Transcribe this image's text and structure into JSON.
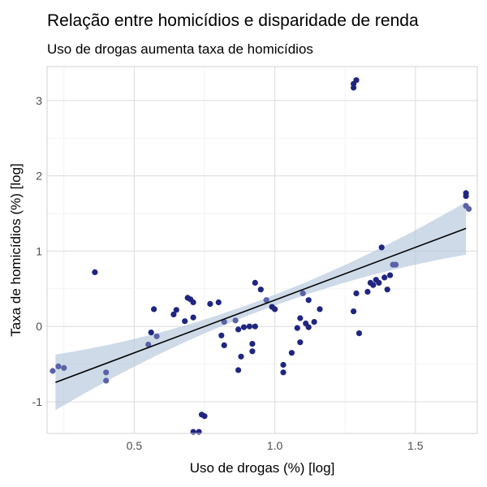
{
  "chart_data": {
    "type": "scatter",
    "title": "Relação entre homicídios e disparidade de renda",
    "subtitle": "Uso de drogas aumenta taxa de homicídios",
    "xlabel": "Uso de drogas (%) [log]",
    "ylabel": "Taxa de homicídios (%) [log]",
    "xlim": [
      0.19,
      1.72
    ],
    "ylim": [
      -1.42,
      3.45
    ],
    "x_ticks": [
      0.5,
      1.0,
      1.5
    ],
    "x_tick_labels": [
      "0.5",
      "1.0",
      "1.5"
    ],
    "y_ticks": [
      -1,
      0,
      1,
      2,
      3
    ],
    "y_tick_labels": [
      "-1",
      "0",
      "1",
      "2",
      "3"
    ],
    "grid": true,
    "legend": "none",
    "colors": {
      "point": "#1f2580",
      "point_light": "#5a62a8",
      "fit_line": "#000000",
      "ribbon": "#b4c6dc"
    },
    "fit": {
      "slope": 1.4,
      "intercept": -1.05,
      "x_range": [
        0.22,
        1.68
      ],
      "se_band": [
        0.37,
        0.35
      ]
    },
    "points": [
      {
        "x": 0.21,
        "y": -0.59
      },
      {
        "x": 0.23,
        "y": -0.53
      },
      {
        "x": 0.25,
        "y": -0.55
      },
      {
        "x": 0.36,
        "y": 0.72
      },
      {
        "x": 0.4,
        "y": -0.61
      },
      {
        "x": 0.4,
        "y": -0.72
      },
      {
        "x": 0.55,
        "y": -0.24
      },
      {
        "x": 0.56,
        "y": -0.08
      },
      {
        "x": 0.57,
        "y": 0.23
      },
      {
        "x": 0.58,
        "y": -0.13
      },
      {
        "x": 0.64,
        "y": 0.16
      },
      {
        "x": 0.65,
        "y": 0.22
      },
      {
        "x": 0.68,
        "y": 0.07
      },
      {
        "x": 0.69,
        "y": 0.38
      },
      {
        "x": 0.7,
        "y": 0.36
      },
      {
        "x": 0.71,
        "y": 0.12
      },
      {
        "x": 0.71,
        "y": 0.32
      },
      {
        "x": 0.71,
        "y": -1.4
      },
      {
        "x": 0.73,
        "y": -1.4
      },
      {
        "x": 0.74,
        "y": -1.17
      },
      {
        "x": 0.75,
        "y": -1.19
      },
      {
        "x": 0.77,
        "y": 0.3
      },
      {
        "x": 0.8,
        "y": 0.32
      },
      {
        "x": 0.81,
        "y": -0.12
      },
      {
        "x": 0.82,
        "y": -0.25
      },
      {
        "x": 0.82,
        "y": 0.06
      },
      {
        "x": 0.86,
        "y": 0.08
      },
      {
        "x": 0.87,
        "y": -0.04
      },
      {
        "x": 0.87,
        "y": -0.58
      },
      {
        "x": 0.88,
        "y": -0.4
      },
      {
        "x": 0.89,
        "y": -0.01
      },
      {
        "x": 0.91,
        "y": 0.0
      },
      {
        "x": 0.92,
        "y": -0.23
      },
      {
        "x": 0.92,
        "y": -0.33
      },
      {
        "x": 0.93,
        "y": 0.58
      },
      {
        "x": 0.93,
        "y": 0.0
      },
      {
        "x": 0.95,
        "y": 0.49
      },
      {
        "x": 0.97,
        "y": 0.35
      },
      {
        "x": 0.99,
        "y": 0.26
      },
      {
        "x": 1.0,
        "y": 0.23
      },
      {
        "x": 1.03,
        "y": -0.51
      },
      {
        "x": 1.03,
        "y": -0.61
      },
      {
        "x": 1.06,
        "y": -0.35
      },
      {
        "x": 1.08,
        "y": -0.02
      },
      {
        "x": 1.09,
        "y": -0.21
      },
      {
        "x": 1.09,
        "y": 0.11
      },
      {
        "x": 1.1,
        "y": 0.44
      },
      {
        "x": 1.11,
        "y": 0.04
      },
      {
        "x": 1.12,
        "y": 0.35
      },
      {
        "x": 1.12,
        "y": -0.01
      },
      {
        "x": 1.14,
        "y": 0.06
      },
      {
        "x": 1.16,
        "y": 0.23
      },
      {
        "x": 1.28,
        "y": 3.17
      },
      {
        "x": 1.28,
        "y": 3.22
      },
      {
        "x": 1.29,
        "y": 3.27
      },
      {
        "x": 1.28,
        "y": 0.2
      },
      {
        "x": 1.29,
        "y": 0.44
      },
      {
        "x": 1.3,
        "y": -0.09
      },
      {
        "x": 1.33,
        "y": 0.46
      },
      {
        "x": 1.34,
        "y": 0.58
      },
      {
        "x": 1.35,
        "y": 0.55
      },
      {
        "x": 1.36,
        "y": 0.62
      },
      {
        "x": 1.37,
        "y": 0.58
      },
      {
        "x": 1.38,
        "y": 1.05
      },
      {
        "x": 1.39,
        "y": 0.65
      },
      {
        "x": 1.4,
        "y": 0.49
      },
      {
        "x": 1.41,
        "y": 0.68
      },
      {
        "x": 1.42,
        "y": 0.82
      },
      {
        "x": 1.43,
        "y": 0.82
      },
      {
        "x": 1.68,
        "y": 1.77
      },
      {
        "x": 1.68,
        "y": 1.73
      },
      {
        "x": 1.68,
        "y": 1.6
      },
      {
        "x": 1.69,
        "y": 1.56
      }
    ]
  }
}
